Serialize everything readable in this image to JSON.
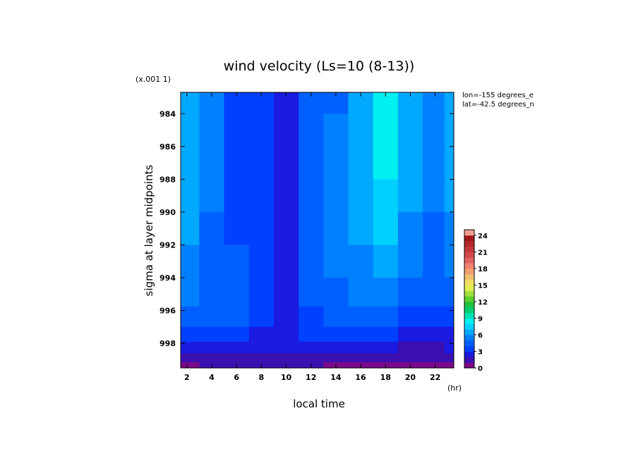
{
  "chart_data": {
    "type": "heatmap",
    "title": "wind velocity (Ls=10 (8-13))",
    "xlabel": "local time",
    "x_unit": "(hr)",
    "ylabel": "sigma at layer midpoints",
    "y_multiplier": "(x.001 1)",
    "annotations": [
      "lon=-155 degrees_e",
      "lat=-42.5 degrees_n"
    ],
    "xlim": [
      1.5,
      23.5
    ],
    "ylim": [
      999.5,
      982.7
    ],
    "x_ticks": [
      2,
      4,
      6,
      8,
      10,
      12,
      14,
      16,
      18,
      20,
      22
    ],
    "y_ticks": [
      984,
      986,
      988,
      990,
      992,
      994,
      996,
      998
    ],
    "x_tick_labels": [
      "2",
      "4",
      "6",
      "8",
      "10",
      "12",
      "14",
      "16",
      "18",
      "20",
      "22"
    ],
    "y_tick_labels": [
      "984",
      "986",
      "988",
      "990",
      "992",
      "994",
      "996",
      "998"
    ],
    "colorbar": {
      "min": 0,
      "max": 25,
      "ticks": [
        0,
        3,
        6,
        9,
        12,
        15,
        18,
        21,
        24
      ],
      "tick_labels": [
        "0",
        "3",
        "6",
        "9",
        "12",
        "15",
        "18",
        "21",
        "24"
      ],
      "colors": [
        "#7a0a8a",
        "#3a10b0",
        "#1a1ae0",
        "#0040ff",
        "#0060ff",
        "#0080ff",
        "#00a8ff",
        "#00d0ff",
        "#00f0f0",
        "#00e0b0",
        "#00d070",
        "#20c040",
        "#60d030",
        "#a0e040",
        "#e0f050",
        "#f0e060",
        "#f0c070",
        "#f0a070",
        "#f08070",
        "#e06060",
        "#d04848",
        "#c03838",
        "#b02828",
        "#a01818",
        "#f0a090"
      ]
    },
    "x": [
      2,
      4,
      6,
      8,
      10,
      12,
      14,
      16,
      18,
      20,
      22,
      23.5
    ],
    "y": [
      983.0,
      985.0,
      987.0,
      989.0,
      991.0,
      993.0,
      995.0,
      996.5,
      997.5,
      998.3,
      998.9,
      999.4
    ],
    "values": [
      [
        6.0,
        5.0,
        3.8,
        3.0,
        2.6,
        4.0,
        4.9,
        6.6,
        8.3,
        6.8,
        5.8,
        6.6
      ],
      [
        6.1,
        5.1,
        3.9,
        3.0,
        2.6,
        4.2,
        5.1,
        6.6,
        8.2,
        6.6,
        5.6,
        6.5
      ],
      [
        6.2,
        5.1,
        3.9,
        3.1,
        2.7,
        4.3,
        5.2,
        6.5,
        8.0,
        6.3,
        5.4,
        6.3
      ],
      [
        6.2,
        5.0,
        3.8,
        3.2,
        2.8,
        4.4,
        5.3,
        6.3,
        7.6,
        6.0,
        5.2,
        6.0
      ],
      [
        6.0,
        4.8,
        3.9,
        3.3,
        2.9,
        4.4,
        5.3,
        6.1,
        7.1,
        5.6,
        4.9,
        5.6
      ],
      [
        5.6,
        4.6,
        4.0,
        3.4,
        2.9,
        4.3,
        5.1,
        5.7,
        6.5,
        5.1,
        4.5,
        5.1
      ],
      [
        5.1,
        4.5,
        4.4,
        3.6,
        2.9,
        4.1,
        4.7,
        5.1,
        5.6,
        4.4,
        4.0,
        4.5
      ],
      [
        4.5,
        4.2,
        4.1,
        3.4,
        2.6,
        3.6,
        4.0,
        4.2,
        4.3,
        3.5,
        3.3,
        3.7
      ],
      [
        3.7,
        3.6,
        3.4,
        2.9,
        2.4,
        3.0,
        3.1,
        3.2,
        3.0,
        2.4,
        2.3,
        2.8
      ],
      [
        2.8,
        2.7,
        2.6,
        2.4,
        2.2,
        2.4,
        2.4,
        2.3,
        2.1,
        1.7,
        1.6,
        2.0
      ],
      [
        1.8,
        1.9,
        1.9,
        1.9,
        1.8,
        1.8,
        1.7,
        1.6,
        1.5,
        1.1,
        1.0,
        1.3
      ],
      [
        0.9,
        1.0,
        1.1,
        1.1,
        1.0,
        1.0,
        0.9,
        0.9,
        0.8,
        0.6,
        0.5,
        0.7
      ]
    ]
  }
}
